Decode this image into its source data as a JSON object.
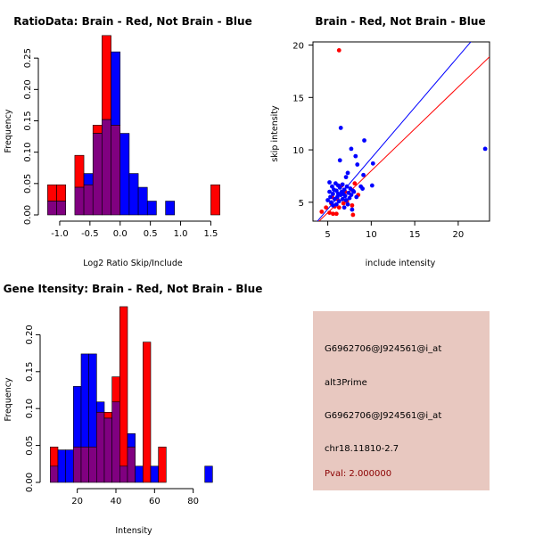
{
  "chart_data": [
    {
      "type": "histogram-overlay",
      "title": "RatioData: Brain - Red, Not Brain - Blue",
      "xlabel": "Log2 Ratio Skip/Include",
      "ylabel": "Frequency",
      "xlim": [
        -1.25,
        1.7
      ],
      "ylim": [
        0,
        0.3
      ],
      "xticks": [
        -1.0,
        -0.5,
        0.0,
        0.5,
        1.0,
        1.5
      ],
      "xtick_labels": [
        "-1.0",
        "-0.5",
        "0.0",
        "0.5",
        "1.0",
        "1.5"
      ],
      "yticks": [
        0.0,
        0.05,
        0.1,
        0.15,
        0.2,
        0.25
      ],
      "ytick_labels": [
        "0.00",
        "0.05",
        "0.10",
        "0.15",
        "0.20",
        "0.25"
      ],
      "bin_start": -1.2,
      "bin_width": 0.15,
      "series": [
        {
          "name": "Brain",
          "color": "#ff0000",
          "values": [
            0.048,
            0.048,
            0,
            0.095,
            0.048,
            0.143,
            0.286,
            0.143,
            0,
            0,
            0,
            0,
            0,
            0,
            0,
            0,
            0,
            0,
            0.048
          ]
        },
        {
          "name": "Not Brain",
          "color": "#0000ff",
          "values": [
            0.022,
            0.022,
            0,
            0.044,
            0.066,
            0.13,
            0.152,
            0.26,
            0.13,
            0.066,
            0.044,
            0.022,
            0,
            0.022,
            0,
            0,
            0,
            0,
            0
          ]
        }
      ],
      "overlap_color": "#800080"
    },
    {
      "type": "scatter",
      "title": "Brain - Red, Not Brain - Blue",
      "xlabel": "include intensity",
      "ylabel": "skip intensity",
      "xlim": [
        3.3,
        23.6
      ],
      "ylim": [
        3.2,
        20.3
      ],
      "xticks": [
        5,
        10,
        15,
        20
      ],
      "xtick_labels": [
        "5",
        "10",
        "15",
        "20"
      ],
      "yticks": [
        5,
        10,
        15,
        20
      ],
      "ytick_labels": [
        "5",
        "10",
        "15",
        "20"
      ],
      "series": [
        {
          "name": "Brain",
          "color": "#ff0000",
          "points": [
            [
              6.3,
              19.5
            ],
            [
              4.3,
              4.1
            ],
            [
              4.8,
              4.5
            ],
            [
              5.2,
              4.0
            ],
            [
              5.6,
              3.9
            ],
            [
              6.0,
              3.9
            ],
            [
              6.3,
              4.5
            ],
            [
              6.8,
              4.9
            ],
            [
              7.2,
              5.1
            ],
            [
              7.8,
              4.7
            ],
            [
              7.9,
              3.8
            ],
            [
              8.1,
              6.8
            ],
            [
              8.5,
              5.7
            ],
            [
              5.4,
              4.9
            ],
            [
              5.8,
              4.6
            ],
            [
              6.1,
              5.3
            ],
            [
              7.0,
              6.0
            ],
            [
              6.6,
              6.6
            ],
            [
              5.5,
              5.5
            ]
          ]
        },
        {
          "name": "Not Brain",
          "color": "#0000ff",
          "points": [
            [
              6.5,
              12.1
            ],
            [
              23.1,
              10.1
            ],
            [
              7.7,
              10.1
            ],
            [
              9.2,
              10.9
            ],
            [
              8.2,
              9.4
            ],
            [
              7.1,
              7.4
            ],
            [
              7.3,
              7.8
            ],
            [
              6.4,
              9.0
            ],
            [
              8.4,
              8.6
            ],
            [
              10.2,
              8.7
            ],
            [
              9.1,
              7.6
            ],
            [
              8.8,
              6.5
            ],
            [
              10.1,
              6.6
            ],
            [
              5.2,
              6.9
            ],
            [
              5.5,
              6.5
            ],
            [
              5.7,
              6.2
            ],
            [
              5.9,
              6.8
            ],
            [
              6.0,
              6.1
            ],
            [
              6.2,
              5.8
            ],
            [
              6.4,
              6.4
            ],
            [
              6.6,
              6.0
            ],
            [
              6.7,
              6.7
            ],
            [
              6.9,
              6.2
            ],
            [
              7.0,
              5.6
            ],
            [
              7.2,
              6.5
            ],
            [
              7.4,
              5.9
            ],
            [
              7.6,
              6.3
            ],
            [
              7.9,
              6.1
            ],
            [
              8.3,
              5.5
            ],
            [
              5.3,
              5.5
            ],
            [
              5.4,
              5.0
            ],
            [
              5.6,
              5.8
            ],
            [
              5.8,
              5.3
            ],
            [
              6.1,
              5.5
            ],
            [
              6.3,
              5.1
            ],
            [
              6.5,
              5.7
            ],
            [
              6.7,
              5.3
            ],
            [
              6.8,
              5.8
            ],
            [
              7.1,
              5.2
            ],
            [
              7.3,
              4.8
            ],
            [
              7.5,
              5.4
            ],
            [
              5.0,
              5.2
            ],
            [
              5.2,
              6.0
            ],
            [
              6.0,
              4.8
            ],
            [
              6.9,
              4.5
            ],
            [
              7.7,
              5.7
            ],
            [
              8.0,
              6.0
            ],
            [
              9.0,
              6.3
            ],
            [
              6.2,
              6.6
            ],
            [
              5.6,
              4.7
            ],
            [
              7.8,
              4.3
            ]
          ]
        }
      ],
      "fit_lines": [
        {
          "name": "Brain fit",
          "color": "#ff0000",
          "slope": 0.8,
          "intercept": 0.0
        },
        {
          "name": "Not Brain fit",
          "color": "#0000ff",
          "slope": 0.97,
          "intercept": -0.5
        }
      ]
    },
    {
      "type": "histogram-overlay",
      "title": "Gene Itensity: Brain - Red, Not Brain - Blue",
      "xlabel": "Intensity",
      "ylabel": "Frequency",
      "xlim": [
        4,
        94
      ],
      "ylim": [
        0,
        0.25
      ],
      "xticks": [
        20,
        40,
        60,
        80
      ],
      "xtick_labels": [
        "20",
        "40",
        "60",
        "80"
      ],
      "yticks": [
        0.0,
        0.05,
        0.1,
        0.15,
        0.2
      ],
      "ytick_labels": [
        "0.00",
        "0.05",
        "0.10",
        "0.15",
        "0.20"
      ],
      "bin_start": 6,
      "bin_width": 4,
      "series": [
        {
          "name": "Brain",
          "color": "#ff0000",
          "values": [
            0.048,
            0,
            0,
            0.048,
            0.048,
            0.048,
            0.095,
            0.095,
            0.143,
            0.238,
            0.048,
            0,
            0.19,
            0,
            0.048,
            0,
            0,
            0,
            0,
            0,
            0
          ]
        },
        {
          "name": "Not Brain",
          "color": "#0000ff",
          "values": [
            0.022,
            0.044,
            0.044,
            0.13,
            0.174,
            0.174,
            0.109,
            0.087,
            0.109,
            0.022,
            0.066,
            0.022,
            0,
            0.022,
            0,
            0,
            0,
            0,
            0,
            0,
            0.022
          ]
        }
      ],
      "overlap_color": "#800080"
    }
  ],
  "info_panel": {
    "lines": [
      "G6962706@J924561@i_at",
      "alt3Prime",
      "G6962706@J924561@i_at",
      "chr18.11810-2.7"
    ],
    "pval": "Pval: 2.000000",
    "pval_color": "#8b0000",
    "background": "#e8c8c0"
  }
}
